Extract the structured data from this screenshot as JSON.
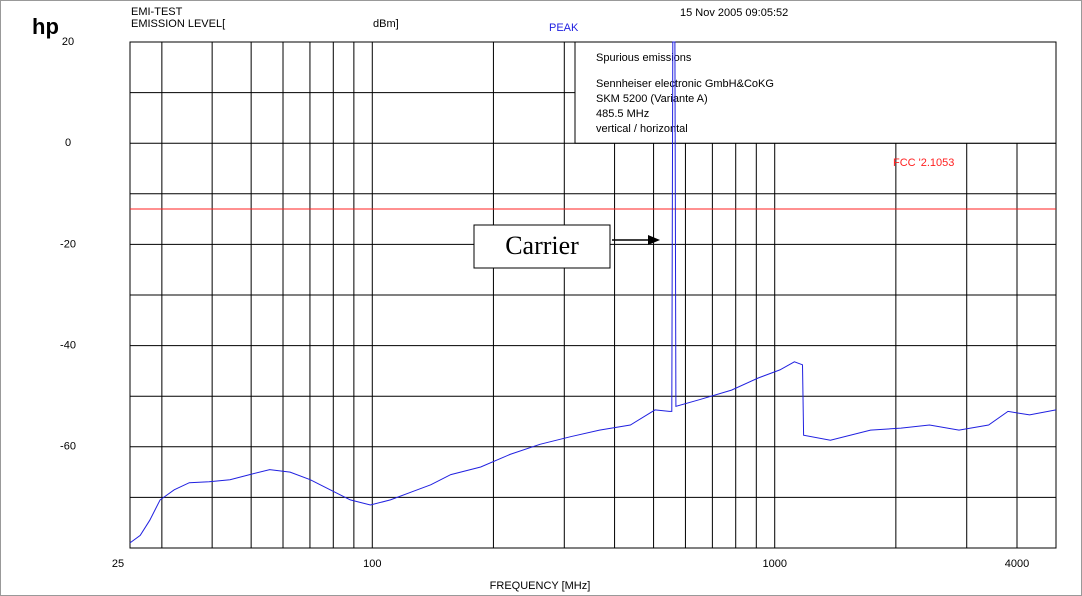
{
  "chart_data": {
    "type": "line",
    "logo": "hp",
    "header_left_1": "EMI-TEST",
    "header_left_2": "EMISSION LEVEL[",
    "unit": "dBm]",
    "detector": "PEAK",
    "timestamp": "15 Nov 2005  09:05:52",
    "info": [
      "Spurious emissions",
      "Sennheiser electronic GmbH&CoKG",
      "SKM 5200 (Variante A)",
      "485.5 MHz",
      "vertical / horizontal"
    ],
    "x_label": "FREQUENCY [MHz]",
    "annotation": "Carrier",
    "limit": {
      "name": "FCC '2.1053",
      "value": -13,
      "color": "#ff2020"
    },
    "xscale": "log",
    "xlim": [
      25,
      5000
    ],
    "xticks": [
      25,
      100,
      1000,
      4000
    ],
    "xminor": [
      30,
      40,
      50,
      60,
      70,
      80,
      90,
      200,
      300,
      400,
      500,
      600,
      700,
      800,
      900,
      2000,
      3000
    ],
    "ylim": [
      -80,
      20
    ],
    "yticks": [
      20,
      0,
      -20,
      -40,
      -60
    ],
    "yminor": [
      10,
      -10,
      -30,
      -50,
      -70
    ],
    "grid": true,
    "series": [
      {
        "color": "#2020e0",
        "x": [
          25,
          26.5,
          28,
          29.7,
          32.2,
          35.1,
          39.3,
          44.3,
          49.6,
          55.6,
          62.5,
          70.1,
          78.6,
          88.2,
          98.9,
          110.9,
          124.5,
          139.7,
          156.7,
          185.9,
          220,
          261,
          311,
          367,
          438,
          504,
          547,
          555,
          558,
          565,
          568,
          650,
          781,
          910,
          1030,
          1119,
          1172,
          1180,
          1375,
          1730,
          2060,
          2425,
          2870,
          3400,
          3800,
          4300,
          5000
        ],
        "values": [
          -79,
          -77.5,
          -74.5,
          -70.5,
          -68.5,
          -67.1,
          -66.9,
          -66.5,
          -65.5,
          -64.5,
          -65,
          -66.5,
          -68.5,
          -70.5,
          -71.5,
          -70.5,
          -69,
          -67.5,
          -65.5,
          -64,
          -61.5,
          -59.5,
          -58,
          -56.7,
          -55.7,
          -52.7,
          -53,
          -53,
          20,
          20,
          -52,
          -50.7,
          -48.8,
          -46.4,
          -44.8,
          -43.2,
          -43.8,
          -57.7,
          -58.7,
          -56.7,
          -56.3,
          -55.7,
          -56.7,
          -55.7,
          -53,
          -53.7,
          -52.7
        ]
      }
    ]
  }
}
